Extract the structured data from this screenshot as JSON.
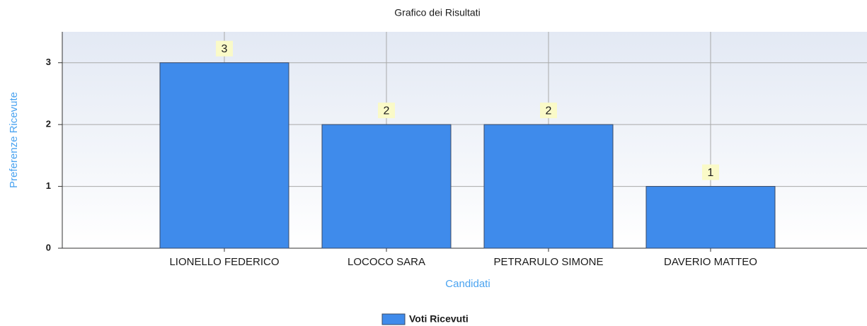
{
  "chart_data": {
    "type": "bar",
    "title": "Grafico dei Risultati",
    "x_label": "Candidati",
    "y_label": "Preferenze Ricevute",
    "categories": [
      "LIONELLO FEDERICO",
      "LOCOCO SARA",
      "PETRARULO SIMONE",
      "DAVERIO MATTEO"
    ],
    "series": [
      {
        "name": "Voti Ricevuti",
        "color": "#3f8beb",
        "values": [
          3,
          2,
          2,
          1
        ]
      }
    ],
    "ylim": [
      0,
      3.5
    ],
    "yticks": [
      0,
      1,
      2,
      3
    ],
    "grid": true,
    "legend": "bottom"
  }
}
